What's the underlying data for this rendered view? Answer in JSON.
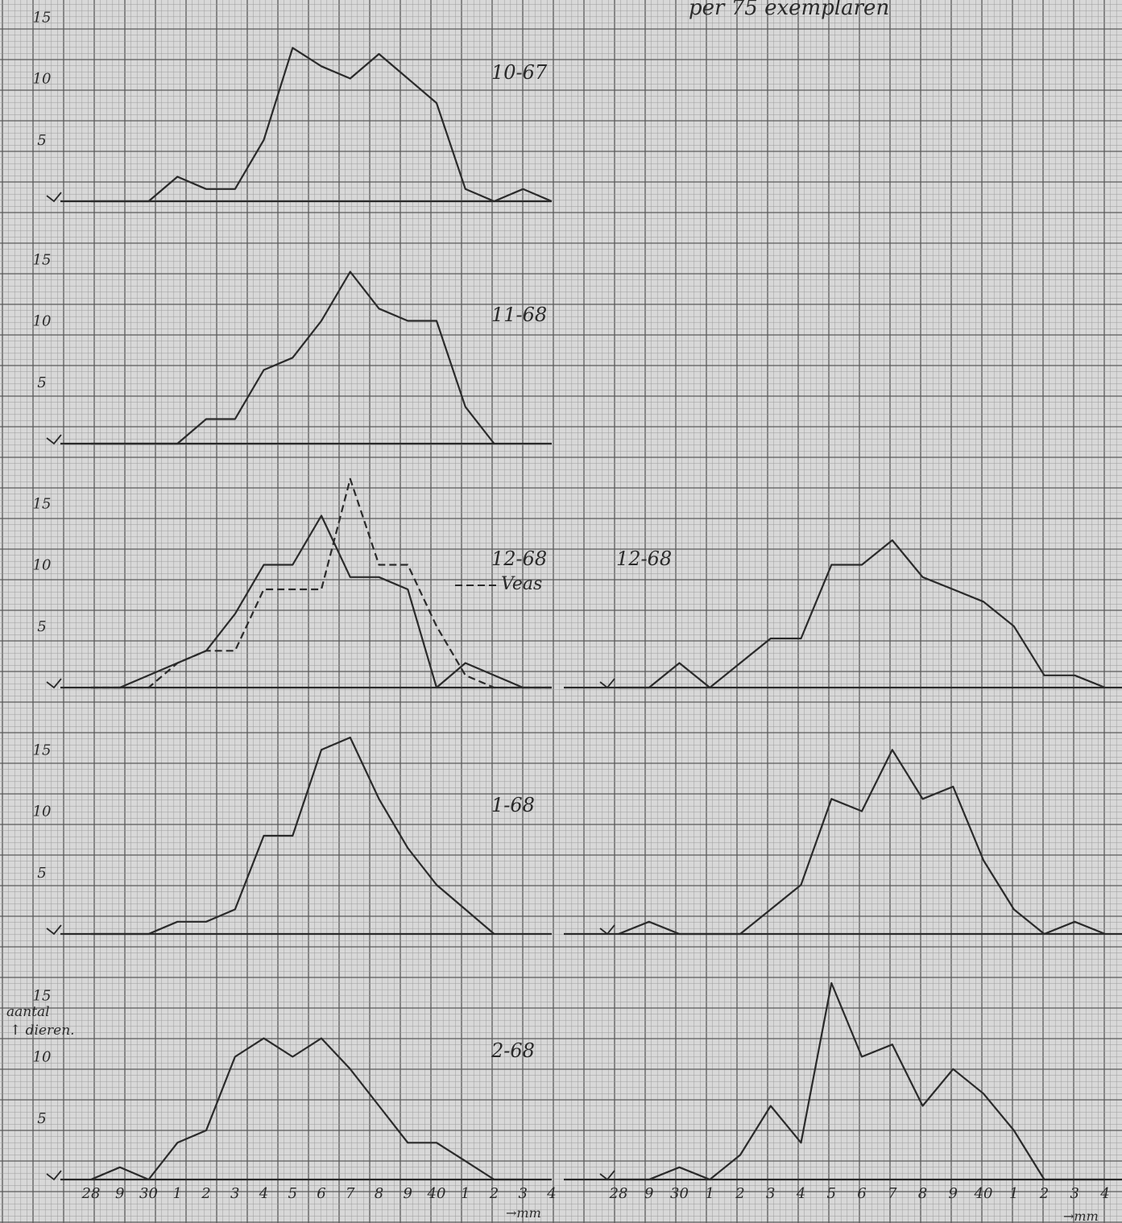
{
  "header_note": "per 75 exemplaren",
  "x_axis": {
    "tick_labels": [
      "28",
      "9",
      "30",
      "1",
      "2",
      "3",
      "4",
      "5",
      "6",
      "7",
      "8",
      "9",
      "40",
      "1",
      "2",
      "3",
      "4"
    ],
    "unit_arrow": "→mm"
  },
  "y_axis": {
    "label_line1": "aantal",
    "label_line2": "↑ dieren.",
    "tick_labels": [
      "5",
      "10",
      "15"
    ]
  },
  "colors": {
    "paper": "#d8d8d8",
    "grid_fine": "#9c9c9c",
    "grid_major": "#5a5a5a",
    "ink": "#2a2a2a"
  },
  "chart_data": [
    {
      "type": "line",
      "title": "10-67",
      "column": "left",
      "x": [
        28,
        29,
        30,
        31,
        32,
        33,
        34,
        35,
        36,
        37,
        38,
        39,
        40,
        41,
        42,
        43,
        44
      ],
      "series": [
        {
          "values": [
            0,
            0,
            0,
            2,
            1,
            1,
            5,
            12.5,
            11,
            10,
            12,
            10,
            8,
            1,
            0,
            1,
            0
          ],
          "style": "solid"
        }
      ],
      "ylim": [
        0,
        16
      ]
    },
    {
      "type": "line",
      "title": "11-68",
      "column": "left",
      "x": [
        28,
        29,
        30,
        31,
        32,
        33,
        34,
        35,
        36,
        37,
        38,
        39,
        40,
        41,
        42
      ],
      "series": [
        {
          "values": [
            0,
            0,
            0,
            0,
            2,
            2,
            6,
            7,
            10,
            14,
            11,
            10,
            10,
            3,
            0
          ],
          "style": "solid"
        }
      ],
      "ylim": [
        0,
        16
      ]
    },
    {
      "type": "line",
      "title": "12-68",
      "column": "left",
      "legend_label": "Veas",
      "x": [
        28,
        29,
        30,
        31,
        32,
        33,
        34,
        35,
        36,
        37,
        38,
        39,
        40,
        41,
        42,
        43,
        44
      ],
      "series": [
        {
          "values": [
            0,
            0,
            1,
            2,
            3,
            6,
            10,
            10,
            14,
            9,
            9,
            8,
            0,
            2,
            1,
            0,
            0
          ],
          "style": "solid"
        },
        {
          "values": [
            0,
            0,
            0,
            2,
            3,
            3,
            8,
            8,
            8,
            17,
            10,
            10,
            5,
            1,
            0,
            0,
            0
          ],
          "style": "dashed"
        }
      ],
      "ylim": [
        0,
        17
      ]
    },
    {
      "type": "line",
      "title": "12-68",
      "column": "right",
      "x": [
        28,
        29,
        30,
        31,
        32,
        33,
        34,
        35,
        36,
        37,
        38,
        39,
        40,
        41,
        42,
        43,
        44
      ],
      "series": [
        {
          "values": [
            0,
            0,
            2,
            0,
            2,
            4,
            4,
            10,
            10,
            12,
            9,
            8,
            7,
            5,
            1,
            1,
            0
          ],
          "style": "solid"
        }
      ],
      "ylim": [
        0,
        16
      ]
    },
    {
      "type": "line",
      "title": "1-68",
      "column": "left",
      "x": [
        28,
        29,
        30,
        31,
        32,
        33,
        34,
        35,
        36,
        37,
        38,
        39,
        40,
        41,
        42
      ],
      "series": [
        {
          "values": [
            0,
            0,
            0,
            1,
            1,
            2,
            8,
            8,
            15,
            16,
            11,
            7,
            4,
            2,
            0
          ],
          "style": "solid"
        }
      ],
      "ylim": [
        0,
        16
      ]
    },
    {
      "type": "line",
      "title": "",
      "column": "right",
      "x": [
        28,
        29,
        30,
        31,
        32,
        33,
        34,
        35,
        36,
        37,
        38,
        39,
        40,
        41,
        42,
        43,
        44
      ],
      "series": [
        {
          "values": [
            0,
            1,
            0,
            0,
            0,
            2,
            4,
            11,
            10,
            15,
            11,
            12,
            6,
            2,
            0,
            1,
            0
          ],
          "style": "solid"
        }
      ],
      "ylim": [
        0,
        16
      ]
    },
    {
      "type": "line",
      "title": "2-68",
      "column": "left",
      "x": [
        28,
        29,
        30,
        31,
        32,
        33,
        34,
        35,
        36,
        37,
        38,
        39,
        40,
        41,
        42,
        43
      ],
      "series": [
        {
          "values": [
            0,
            1,
            0,
            3,
            4,
            10,
            11.5,
            10,
            11.5,
            9,
            6,
            3,
            3,
            1.5,
            0,
            0
          ],
          "style": "solid"
        }
      ],
      "ylim": [
        0,
        16
      ]
    },
    {
      "type": "line",
      "title": "",
      "column": "right",
      "x": [
        28,
        29,
        30,
        31,
        32,
        33,
        34,
        35,
        36,
        37,
        38,
        39,
        40,
        41,
        42,
        43,
        44
      ],
      "series": [
        {
          "values": [
            0,
            0,
            1,
            0,
            2,
            6,
            3,
            16,
            10,
            11,
            6,
            9,
            7,
            4,
            0,
            0,
            0
          ],
          "style": "solid"
        }
      ],
      "ylim": [
        0,
        16
      ]
    }
  ]
}
